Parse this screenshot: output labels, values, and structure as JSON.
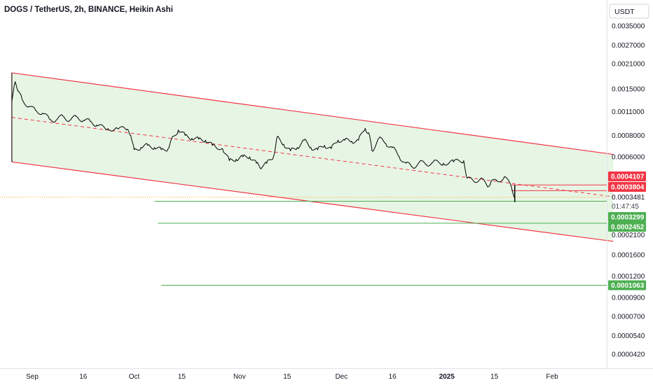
{
  "header": {
    "symbol": "DOGS / TetherUS",
    "interval": "2h",
    "exchange": "BINANCE",
    "chart_style": "Heikin Ashi",
    "title": "DOGS / TetherUS, 2h, BINANCE, Heikin Ashi"
  },
  "price_axis": {
    "currency_button": "USDT",
    "scale": "log"
  },
  "colors": {
    "channel_line": "#f23645",
    "channel_fill": "#dff2dc",
    "midline": "#f23645",
    "support_line": "#4caf50",
    "resistance_badge": "#f23645",
    "support_badge": "#4caf50",
    "price_line": "#f5a623",
    "candles": "#000000"
  },
  "chart_data": {
    "type": "line",
    "title": "DOGS / TetherUS, 2h, BINANCE, Heikin Ashi",
    "xlabel": "",
    "ylabel": "",
    "y_scale": "log",
    "ylim": [
      4e-05,
      0.0041
    ],
    "x_range": [
      "2024-08-26",
      "2025-02-19"
    ],
    "x_tick_labels": [
      {
        "date": "2024-09-01",
        "label": "Sep"
      },
      {
        "date": "2024-09-16",
        "label": "16"
      },
      {
        "date": "2024-10-01",
        "label": "Oct"
      },
      {
        "date": "2024-10-15",
        "label": "15"
      },
      {
        "date": "2024-11-01",
        "label": "Nov"
      },
      {
        "date": "2024-11-15",
        "label": "15"
      },
      {
        "date": "2024-12-01",
        "label": "Dec"
      },
      {
        "date": "2024-12-16",
        "label": "16"
      },
      {
        "date": "2025-01-01",
        "label": "2025"
      },
      {
        "date": "2025-01-15",
        "label": "15"
      },
      {
        "date": "2025-02-01",
        "label": "Feb"
      }
    ],
    "y_tick_labels": [
      "0.0035000",
      "0.0027000",
      "0.0021000",
      "0.0015000",
      "0.0011000",
      "0.0008000",
      "0.0006000",
      "0.0002100",
      "0.0001600",
      "0.0001200",
      "0.0000900",
      "0.0000700",
      "0.0000540",
      "0.0000420"
    ],
    "series": [
      {
        "type": "line",
        "points": [
          [
            "2024-08-26",
            0.00126
          ],
          [
            "2024-08-27",
            0.00165
          ],
          [
            "2024-08-28",
            0.00145
          ],
          [
            "2024-08-29",
            0.0013
          ],
          [
            "2024-08-31",
            0.00118
          ],
          [
            "2024-09-02",
            0.00112
          ],
          [
            "2024-09-04",
            0.00108
          ],
          [
            "2024-09-06",
            0.001
          ],
          [
            "2024-09-08",
            0.00098
          ],
          [
            "2024-09-10",
            0.00104
          ],
          [
            "2024-09-12",
            0.00098
          ],
          [
            "2024-09-14",
            0.00103
          ],
          [
            "2024-09-16",
            0.00098
          ],
          [
            "2024-09-18",
            0.00097
          ],
          [
            "2024-09-20",
            0.00092
          ],
          [
            "2024-09-23",
            0.00087
          ],
          [
            "2024-09-26",
            0.00088
          ],
          [
            "2024-09-29",
            0.00087
          ],
          [
            "2024-09-30",
            0.0008
          ],
          [
            "2024-10-01",
            0.00066
          ],
          [
            "2024-10-03",
            0.00068
          ],
          [
            "2024-10-05",
            0.0007
          ],
          [
            "2024-10-07",
            0.00068
          ],
          [
            "2024-10-09",
            0.00066
          ],
          [
            "2024-10-11",
            0.00067
          ],
          [
            "2024-10-12",
            0.00076
          ],
          [
            "2024-10-14",
            0.00086
          ],
          [
            "2024-10-16",
            0.0008
          ],
          [
            "2024-10-18",
            0.00077
          ],
          [
            "2024-10-20",
            0.00076
          ],
          [
            "2024-10-22",
            0.00075
          ],
          [
            "2024-10-24",
            0.0007
          ],
          [
            "2024-10-27",
            0.00067
          ],
          [
            "2024-10-29",
            0.00057
          ],
          [
            "2024-10-31",
            0.00058
          ],
          [
            "2024-11-02",
            0.0006
          ],
          [
            "2024-11-04",
            0.0006
          ],
          [
            "2024-11-06",
            0.00055
          ],
          [
            "2024-11-07",
            0.00052
          ],
          [
            "2024-11-09",
            0.00055
          ],
          [
            "2024-11-11",
            0.0006
          ],
          [
            "2024-11-12",
            0.00078
          ],
          [
            "2024-11-14",
            0.00071
          ],
          [
            "2024-11-16",
            0.00065
          ],
          [
            "2024-11-18",
            0.00068
          ],
          [
            "2024-11-20",
            0.00075
          ],
          [
            "2024-11-22",
            0.00068
          ],
          [
            "2024-11-24",
            0.00066
          ],
          [
            "2024-11-26",
            0.0007
          ],
          [
            "2024-11-28",
            0.00067
          ],
          [
            "2024-11-30",
            0.00075
          ],
          [
            "2024-12-02",
            0.00075
          ],
          [
            "2024-12-04",
            0.00074
          ],
          [
            "2024-12-06",
            0.00075
          ],
          [
            "2024-12-08",
            0.00088
          ],
          [
            "2024-12-09",
            0.00083
          ],
          [
            "2024-12-10",
            0.00065
          ],
          [
            "2024-12-12",
            0.00077
          ],
          [
            "2024-12-14",
            0.00072
          ],
          [
            "2024-12-16",
            0.00068
          ],
          [
            "2024-12-18",
            0.0006
          ],
          [
            "2024-12-20",
            0.00055
          ],
          [
            "2024-12-22",
            0.00052
          ],
          [
            "2024-12-24",
            0.00056
          ],
          [
            "2024-12-26",
            0.00054
          ],
          [
            "2024-12-28",
            0.00056
          ],
          [
            "2024-12-31",
            0.00055
          ],
          [
            "2025-01-03",
            0.00056
          ],
          [
            "2025-01-06",
            0.00057
          ],
          [
            "2025-01-07",
            0.00045
          ],
          [
            "2025-01-09",
            0.00043
          ],
          [
            "2025-01-11",
            0.00045
          ],
          [
            "2025-01-13",
            0.0004
          ],
          [
            "2025-01-14",
            0.00043
          ],
          [
            "2025-01-16",
            0.00043
          ],
          [
            "2025-01-18",
            0.00046
          ],
          [
            "2025-01-20",
            0.0004
          ],
          [
            "2025-01-21",
            0.000348
          ]
        ]
      }
    ],
    "channel": {
      "upper": [
        [
          "2024-08-26",
          0.00186
        ],
        [
          "2025-02-19",
          0.00062
        ]
      ],
      "lower": [
        [
          "2024-08-26",
          0.00056
        ],
        [
          "2025-02-19",
          0.000192
        ]
      ],
      "mid": [
        [
          "2024-08-26",
          0.00102
        ],
        [
          "2025-02-19",
          0.00035
        ]
      ]
    },
    "horizontal_lines": [
      {
        "kind": "resistance",
        "price": 0.0004107,
        "label": "0.0004107",
        "from": "2025-01-20"
      },
      {
        "kind": "resistance",
        "price": 0.0003804,
        "label": "0.0003804",
        "from": "2025-01-20"
      },
      {
        "kind": "support",
        "price": 0.0003299,
        "label": "0.0003299",
        "from": "2024-10-07"
      },
      {
        "kind": "support",
        "price": 0.0002452,
        "label": "0.0002452",
        "from": "2024-10-08"
      },
      {
        "kind": "support",
        "price": 0.0001063,
        "label": "0.0001063",
        "from": "2024-10-09"
      }
    ],
    "current_price": {
      "price": 0.0003481,
      "label": "0.0003481",
      "countdown": "01:47:45"
    }
  }
}
